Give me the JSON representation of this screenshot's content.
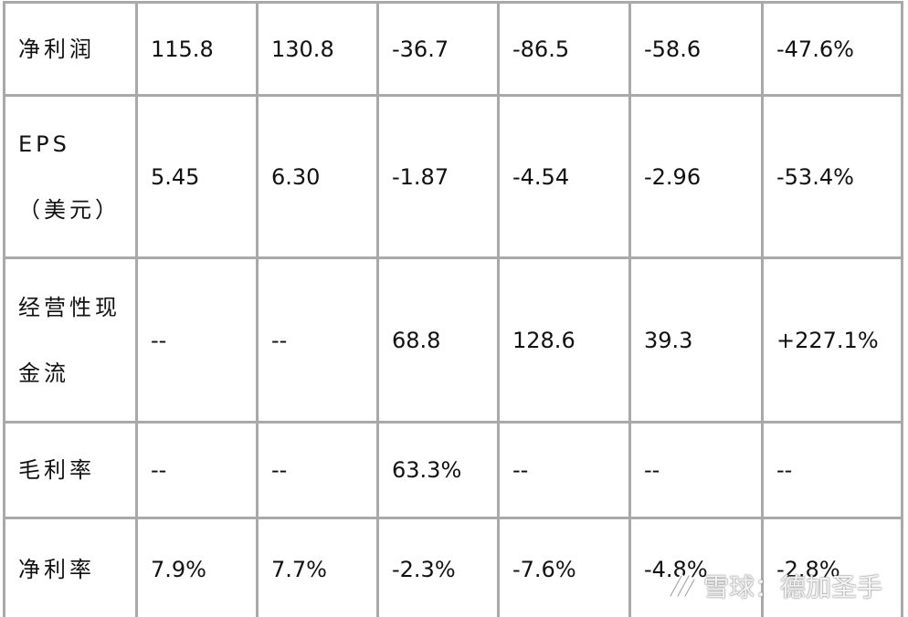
{
  "table": {
    "rows": [
      [
        "净利润",
        "115.8",
        "130.8",
        "-36.7",
        "-86.5",
        "-58.6",
        "-47.6%"
      ],
      [
        "EPS （美元）",
        "5.45",
        "6.30",
        "-1.87",
        "-4.54",
        "-2.96",
        "-53.4%"
      ],
      [
        "经营性现金流",
        "--",
        "--",
        "68.8",
        "128.6",
        "39.3",
        "+227.1%"
      ],
      [
        "毛利率",
        "--",
        "--",
        "63.3%",
        "--",
        "--",
        "--"
      ],
      [
        "净利率",
        "7.9%",
        "7.7%",
        "-2.3%",
        "-7.6%",
        "-4.8%",
        "-2.8%"
      ]
    ]
  },
  "watermark": "雪球：德加圣手"
}
